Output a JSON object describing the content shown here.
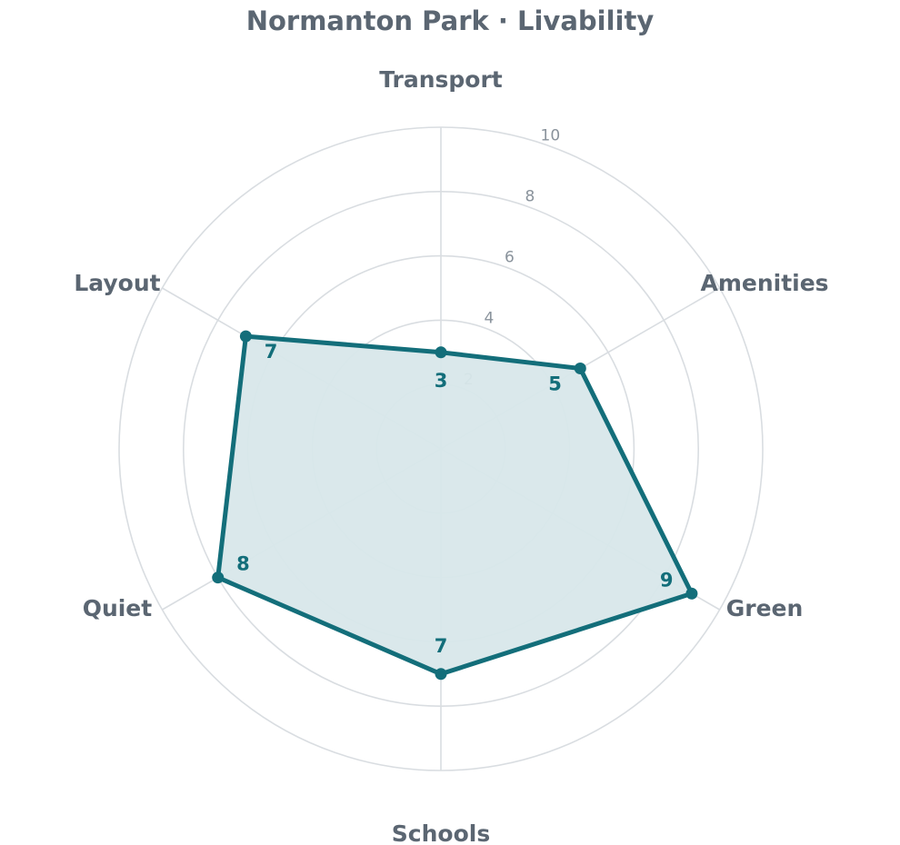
{
  "chart_data": {
    "type": "radar",
    "title": "Normanton Park · Livability",
    "categories": [
      "Transport",
      "Amenities",
      "Green",
      "Schools",
      "Quiet",
      "Layout"
    ],
    "series": [
      {
        "values": [
          3,
          5,
          9,
          7,
          8,
          7
        ]
      }
    ],
    "rlim": [
      0,
      10
    ],
    "rticks": [
      2,
      4,
      6,
      8,
      10
    ],
    "grid": true,
    "data_labels": true,
    "colors": {
      "series_line": "#136e7a",
      "series_fill": "#d8e7ea",
      "grid": "#d9dde1",
      "axis_label": "#5b6672",
      "tick_label": "#8a939c"
    }
  }
}
